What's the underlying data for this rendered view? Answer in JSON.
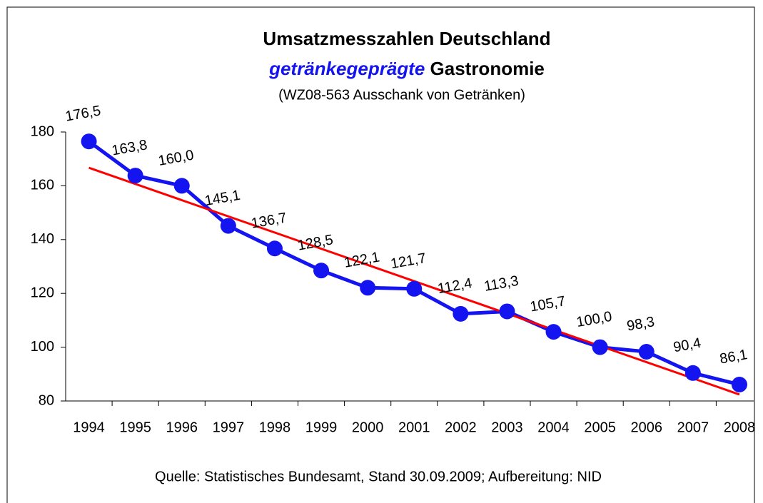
{
  "chart_data": {
    "type": "line",
    "title": "Umsatzmesszahlen Deutschland",
    "subtitle": {
      "highlight": "getränkegeprägte",
      "rest": "Gastronomie"
    },
    "note": "(WZ08-563 Ausschank von Getränken)",
    "source": "Quelle: Statistisches Bundesamt, Stand 30.09.2009; Aufbereitung: NID",
    "categories": [
      "1994",
      "1995",
      "1996",
      "1997",
      "1998",
      "1999",
      "2000",
      "2001",
      "2002",
      "2003",
      "2004",
      "2005",
      "2006",
      "2007",
      "2008"
    ],
    "series": [
      {
        "color": "#1414f0",
        "values": [
          176.5,
          163.8,
          160.0,
          145.1,
          136.7,
          128.5,
          122.1,
          121.7,
          112.4,
          113.3,
          105.7,
          100.0,
          98.3,
          90.4,
          86.1
        ],
        "value_labels": [
          "176,5",
          "163,8",
          "160,0",
          "145,1",
          "136,7",
          "128,5",
          "122,1",
          "121,7",
          "112,4",
          "113,3",
          "105,7",
          "100,0",
          "98,3",
          "90,4",
          "86,1"
        ]
      }
    ],
    "trendline": {
      "color": "#ff0000",
      "start": 166.7,
      "end": 82.4
    },
    "ylim": [
      80,
      180
    ],
    "yticks": [
      80,
      100,
      120,
      140,
      160,
      180
    ]
  }
}
